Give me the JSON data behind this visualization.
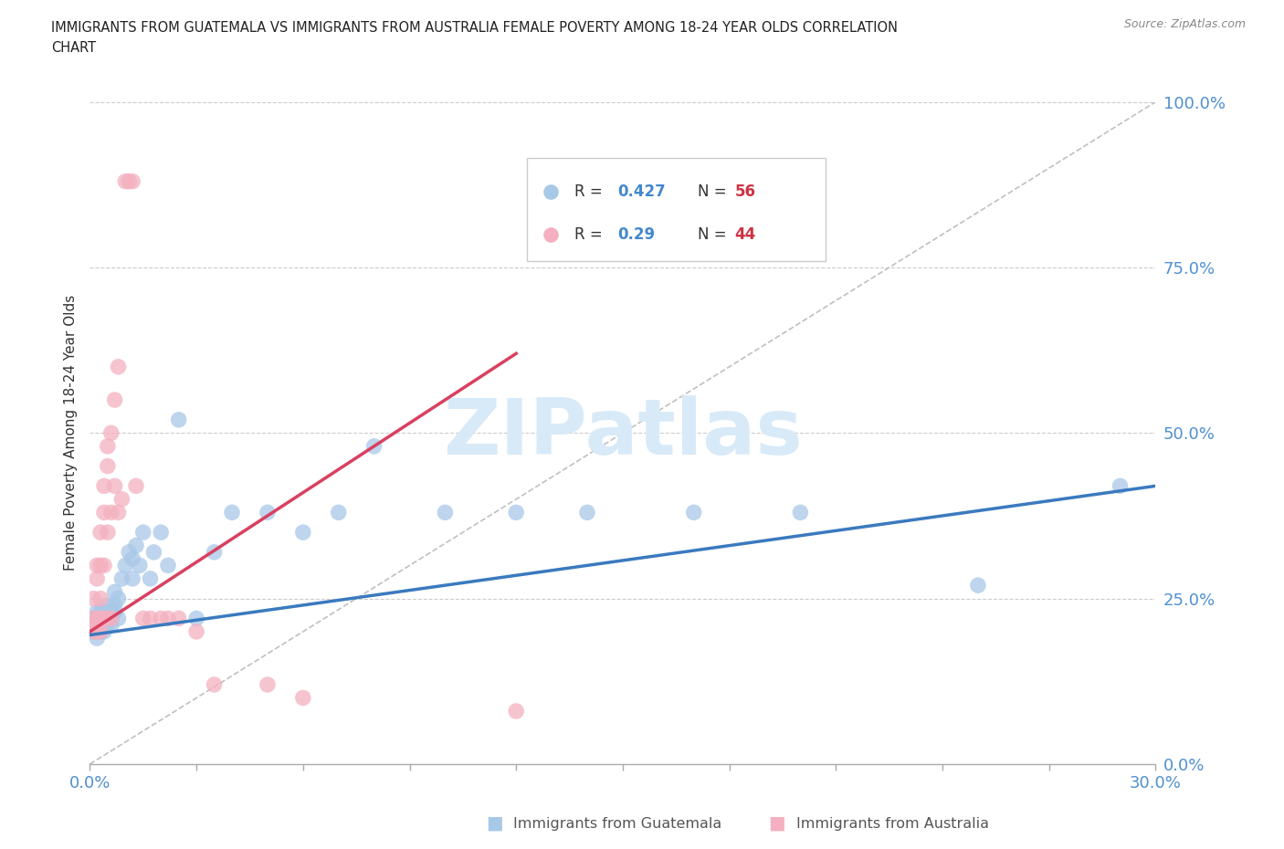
{
  "title_line1": "IMMIGRANTS FROM GUATEMALA VS IMMIGRANTS FROM AUSTRALIA FEMALE POVERTY AMONG 18-24 YEAR OLDS CORRELATION",
  "title_line2": "CHART",
  "source": "Source: ZipAtlas.com",
  "ylabel": "Female Poverty Among 18-24 Year Olds",
  "xlim": [
    0.0,
    0.3
  ],
  "ylim": [
    0.0,
    1.0
  ],
  "ytick_vals": [
    0.0,
    0.25,
    0.5,
    0.75,
    1.0
  ],
  "xtick_vals": [
    0.0,
    0.03,
    0.06,
    0.09,
    0.12,
    0.15,
    0.18,
    0.21,
    0.24,
    0.27,
    0.3
  ],
  "xlabel_show": [
    0.0,
    0.3
  ],
  "guatemala_color": "#a8c8e8",
  "australia_color": "#f4b0c0",
  "blue_line_color": "#3a7abf",
  "pink_line_color": "#d94060",
  "axis_tick_color": "#5090d0",
  "grid_color": "#cccccc",
  "watermark_text": "ZIPatlas",
  "watermark_color": "#d8eaf8",
  "guatemala_R": 0.427,
  "guatemala_N": 56,
  "australia_R": 0.29,
  "australia_N": 44,
  "legend_color": "#4488cc",
  "legend_N_color": "#cc3344",
  "guatemala_x": [
    0.001,
    0.001,
    0.001,
    0.002,
    0.002,
    0.002,
    0.002,
    0.002,
    0.003,
    0.003,
    0.003,
    0.003,
    0.003,
    0.004,
    0.004,
    0.004,
    0.004,
    0.005,
    0.005,
    0.005,
    0.005,
    0.006,
    0.006,
    0.006,
    0.007,
    0.007,
    0.007,
    0.008,
    0.008,
    0.009,
    0.01,
    0.011,
    0.012,
    0.012,
    0.013,
    0.014,
    0.015,
    0.017,
    0.018,
    0.02,
    0.022,
    0.025,
    0.03,
    0.035,
    0.04,
    0.05,
    0.06,
    0.07,
    0.08,
    0.1,
    0.12,
    0.14,
    0.17,
    0.2,
    0.25,
    0.29
  ],
  "guatemala_y": [
    0.22,
    0.2,
    0.21,
    0.2,
    0.22,
    0.19,
    0.21,
    0.23,
    0.2,
    0.22,
    0.21,
    0.23,
    0.2,
    0.22,
    0.21,
    0.23,
    0.2,
    0.22,
    0.24,
    0.21,
    0.23,
    0.22,
    0.21,
    0.23,
    0.24,
    0.26,
    0.23,
    0.22,
    0.25,
    0.28,
    0.3,
    0.32,
    0.28,
    0.31,
    0.33,
    0.3,
    0.35,
    0.28,
    0.32,
    0.35,
    0.3,
    0.52,
    0.22,
    0.32,
    0.38,
    0.38,
    0.35,
    0.38,
    0.48,
    0.38,
    0.38,
    0.38,
    0.38,
    0.38,
    0.27,
    0.42
  ],
  "australia_x": [
    0.001,
    0.001,
    0.001,
    0.001,
    0.002,
    0.002,
    0.002,
    0.002,
    0.002,
    0.003,
    0.003,
    0.003,
    0.003,
    0.003,
    0.004,
    0.004,
    0.004,
    0.004,
    0.005,
    0.005,
    0.005,
    0.005,
    0.006,
    0.006,
    0.006,
    0.007,
    0.007,
    0.008,
    0.008,
    0.009,
    0.01,
    0.011,
    0.012,
    0.013,
    0.015,
    0.017,
    0.02,
    0.022,
    0.025,
    0.03,
    0.035,
    0.05,
    0.06,
    0.12
  ],
  "australia_y": [
    0.22,
    0.25,
    0.2,
    0.21,
    0.28,
    0.3,
    0.22,
    0.2,
    0.21,
    0.25,
    0.3,
    0.35,
    0.22,
    0.2,
    0.38,
    0.42,
    0.3,
    0.22,
    0.45,
    0.48,
    0.35,
    0.22,
    0.5,
    0.38,
    0.22,
    0.55,
    0.42,
    0.6,
    0.38,
    0.4,
    0.88,
    0.88,
    0.88,
    0.42,
    0.22,
    0.22,
    0.22,
    0.22,
    0.22,
    0.2,
    0.12,
    0.12,
    0.1,
    0.08
  ],
  "blue_line_x0": 0.0,
  "blue_line_y0": 0.195,
  "blue_line_x1": 0.3,
  "blue_line_y1": 0.42,
  "pink_line_x0": 0.0,
  "pink_line_y0": 0.2,
  "pink_line_x1": 0.12,
  "pink_line_y1": 0.62
}
